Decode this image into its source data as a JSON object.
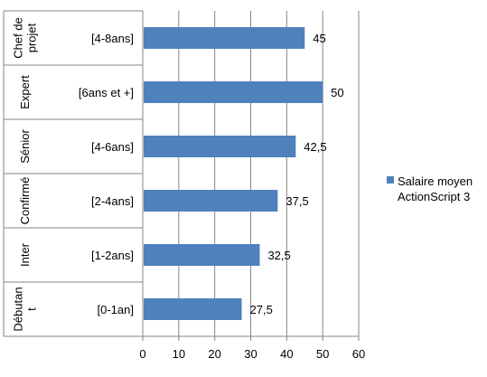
{
  "chart_data": {
    "type": "bar",
    "orientation": "horizontal",
    "title": "",
    "xlabel": "",
    "ylabel": "",
    "groups": [
      "Chef de\nprojet",
      "Expert",
      "Sénior",
      "Confirmé",
      "Inter",
      "Débutan\nt"
    ],
    "categories": [
      "[4-8ans]",
      "[6ans et +]",
      "[4-6ans]",
      "[2-4ans]",
      "[1-2ans]",
      "[0-1an]"
    ],
    "series": [
      {
        "name": "Salaire moyen\nActionScript 3",
        "values": [
          45,
          50,
          42.5,
          37.5,
          32.5,
          27.5
        ],
        "labels": [
          "45",
          "50",
          "42,5",
          "37,5",
          "32,5",
          "27,5"
        ]
      }
    ],
    "xlim": [
      0,
      60
    ],
    "xticks": [
      0,
      10,
      20,
      30,
      40,
      50,
      60
    ],
    "grid": "vertical",
    "legend_position": "right",
    "colors": {
      "bar": "#4F81BD",
      "grid": "#868686",
      "axis": "#868686"
    }
  }
}
